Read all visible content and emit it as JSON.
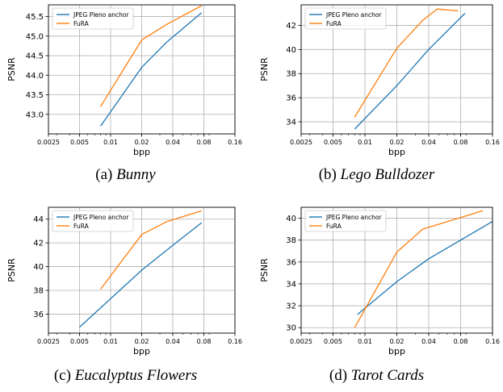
{
  "colors": {
    "anchor": "#1f77b4",
    "fura": "#ff7f0e",
    "grid": "#b0b0b0"
  },
  "captions": [
    {
      "letter": "(a)",
      "name": "Bunny"
    },
    {
      "letter": "(b)",
      "name": "Lego Bulldozer"
    },
    {
      "letter": "(c)",
      "name": "Eucalyptus Flowers"
    },
    {
      "letter": "(d)",
      "name": "Tarot Cards"
    }
  ],
  "chart_data": [
    {
      "type": "line",
      "xlabel": "bpp",
      "ylabel": "PSNR",
      "xscale": "log2",
      "xlim": [
        0.0025,
        0.16
      ],
      "xticks": [
        "0.0025",
        "0.005",
        "0.01",
        "0.02",
        "0.04",
        "0.08",
        "0.16"
      ],
      "ylim": [
        42.5,
        45.8
      ],
      "yticks": [
        "43.0",
        "43.5",
        "44.0",
        "44.5",
        "45.0",
        "45.5"
      ],
      "grid": true,
      "legend": "top-left",
      "series": [
        {
          "name": "JPEG Pleno anchor",
          "x": [
            0.008,
            0.02,
            0.035,
            0.076
          ],
          "y": [
            42.7,
            44.2,
            44.85,
            45.6
          ]
        },
        {
          "name": "FuRA",
          "x": [
            0.008,
            0.02,
            0.035,
            0.076
          ],
          "y": [
            43.2,
            44.9,
            45.3,
            45.78
          ]
        }
      ]
    },
    {
      "type": "line",
      "xlabel": "bpp",
      "ylabel": "PSNR",
      "xscale": "log2",
      "xlim": [
        0.0025,
        0.16
      ],
      "xticks": [
        "0.0025",
        "0.005",
        "0.01",
        "0.02",
        "0.04",
        "0.08",
        "0.16"
      ],
      "ylim": [
        33,
        43.7
      ],
      "yticks": [
        "34",
        "36",
        "38",
        "40",
        "42"
      ],
      "grid": true,
      "legend": "top-left",
      "series": [
        {
          "name": "JPEG Pleno anchor",
          "x": [
            0.008,
            0.02,
            0.04,
            0.088
          ],
          "y": [
            33.4,
            37.0,
            40.0,
            43.0
          ]
        },
        {
          "name": "FuRA",
          "x": [
            0.008,
            0.02,
            0.035,
            0.048,
            0.076
          ],
          "y": [
            34.4,
            40.1,
            42.4,
            43.35,
            43.2
          ]
        }
      ]
    },
    {
      "type": "line",
      "xlabel": "bpp",
      "ylabel": "PSNR",
      "xscale": "log2",
      "xlim": [
        0.0025,
        0.16
      ],
      "xticks": [
        "0.0025",
        "0.005",
        "0.01",
        "0.02",
        "0.04",
        "0.08",
        "0.16"
      ],
      "ylim": [
        34.4,
        45.0
      ],
      "yticks": [
        "36",
        "38",
        "40",
        "42",
        "44"
      ],
      "grid": true,
      "legend": "top-left",
      "series": [
        {
          "name": "JPEG Pleno anchor",
          "x": [
            0.005,
            0.02,
            0.04,
            0.076
          ],
          "y": [
            34.9,
            39.7,
            41.8,
            43.7
          ]
        },
        {
          "name": "FuRA",
          "x": [
            0.008,
            0.02,
            0.035,
            0.076
          ],
          "y": [
            38.1,
            42.7,
            43.8,
            44.7
          ]
        }
      ]
    },
    {
      "type": "line",
      "xlabel": "bpp",
      "ylabel": "PSNR",
      "xscale": "log2",
      "xlim": [
        0.0025,
        0.16
      ],
      "xticks": [
        "0.0025",
        "0.005",
        "0.01",
        "0.02",
        "0.04",
        "0.08",
        "0.16"
      ],
      "ylim": [
        29.5,
        41.0
      ],
      "yticks": [
        "30",
        "32",
        "34",
        "36",
        "38",
        "40"
      ],
      "grid": true,
      "legend": "top-left",
      "series": [
        {
          "name": "JPEG Pleno anchor",
          "x": [
            0.0085,
            0.02,
            0.04,
            0.08,
            0.16
          ],
          "y": [
            31.2,
            34.2,
            36.3,
            38.0,
            39.7
          ]
        },
        {
          "name": "FuRA",
          "x": [
            0.008,
            0.02,
            0.035,
            0.076,
            0.13
          ],
          "y": [
            30.0,
            36.9,
            39.0,
            40.0,
            40.7
          ]
        }
      ]
    }
  ]
}
